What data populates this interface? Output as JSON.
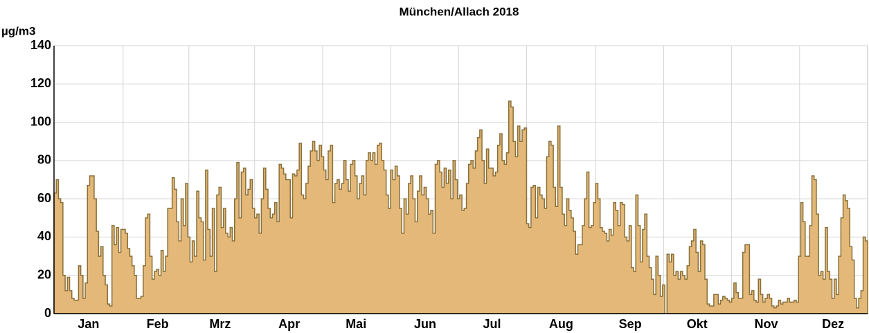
{
  "chart_data": {
    "type": "step-area",
    "title": "München/Allach 2018",
    "y_label": "µg/m3",
    "color": "#e3b878",
    "line_color": "#8a7038",
    "ylim": [
      0,
      140
    ],
    "yticks": [
      0,
      20,
      40,
      60,
      80,
      100,
      120,
      140
    ],
    "grid": true,
    "categories": [
      null,
      null,
      null,
      null,
      null,
      null,
      null,
      null,
      null,
      null,
      null,
      null,
      null,
      null,
      null,
      "Jan",
      null,
      null,
      null,
      null,
      null,
      null,
      null,
      null,
      null,
      null,
      null,
      null,
      null,
      null,
      null,
      null,
      null,
      null,
      null,
      null,
      null,
      null,
      null,
      null,
      null,
      null,
      null,
      null,
      null,
      null,
      "Feb",
      null,
      null,
      null,
      null,
      null,
      null,
      null,
      null,
      null,
      null,
      null,
      null,
      null,
      null,
      null,
      null,
      null,
      null,
      null,
      null,
      null,
      null,
      null,
      null,
      null,
      null,
      null,
      "Mrz",
      null,
      null,
      null,
      null,
      null,
      null,
      null,
      null,
      null,
      null,
      null,
      null,
      null,
      null,
      null,
      null,
      null,
      null,
      null,
      null,
      null,
      null,
      null,
      null,
      null,
      null,
      null,
      null,
      null,
      null,
      "Apr",
      null,
      null,
      null,
      null,
      null,
      null,
      null,
      null,
      null,
      null,
      null,
      null,
      null,
      null,
      null,
      null,
      null,
      null,
      null,
      null,
      null,
      null,
      null,
      null,
      null,
      null,
      null,
      null,
      null,
      "Mai",
      null,
      null,
      null,
      null,
      null,
      null,
      null,
      null,
      null,
      null,
      null,
      null,
      null,
      null,
      null,
      null,
      null,
      null,
      null,
      null,
      null,
      null,
      null,
      null,
      null,
      null,
      null,
      null,
      null,
      null,
      "Jun",
      null,
      null,
      null,
      null,
      null,
      null,
      null,
      null,
      null,
      null,
      null,
      null,
      null,
      null,
      null,
      null,
      null,
      null,
      null,
      null,
      null,
      null,
      null,
      null,
      null,
      null,
      null,
      null,
      null,
      "Jul",
      null,
      null,
      null,
      null,
      null,
      null,
      null,
      null,
      null,
      null,
      null,
      null,
      null,
      null,
      null,
      null,
      null,
      null,
      null,
      null,
      null,
      null,
      null,
      null,
      null,
      null,
      null,
      null,
      null,
      null,
      "Aug",
      null,
      null,
      null,
      null,
      null,
      null,
      null,
      null,
      null,
      null,
      null,
      null,
      null,
      null,
      null,
      null,
      null,
      null,
      null,
      null,
      null,
      null,
      null,
      null,
      null,
      null,
      null,
      null,
      null,
      null,
      "Sep",
      null,
      null,
      null,
      null,
      null,
      null,
      null,
      null,
      null,
      null,
      null,
      null,
      null,
      null,
      null,
      null,
      null,
      null,
      null,
      null,
      null,
      null,
      null,
      null,
      null,
      null,
      null,
      null,
      null,
      "Okt",
      null,
      null,
      null,
      null,
      null,
      null,
      null,
      null,
      null,
      null,
      null,
      null,
      null,
      null,
      null,
      null,
      null,
      null,
      null,
      null,
      null,
      null,
      null,
      null,
      null,
      null,
      null,
      null,
      null,
      null,
      "Nov",
      null,
      null,
      null,
      null,
      null,
      null,
      null,
      null,
      null,
      null,
      null,
      null,
      null,
      null,
      null,
      null,
      null,
      null,
      null,
      null,
      null,
      null,
      null,
      null,
      null,
      null,
      null,
      null,
      null,
      "Dez",
      null,
      null,
      null,
      null,
      null,
      null,
      null,
      null,
      null,
      null,
      null,
      null,
      null,
      null,
      null
    ],
    "values": [
      63,
      70,
      60,
      58,
      20,
      12,
      19,
      12,
      8,
      7,
      7,
      25,
      20,
      8,
      16,
      67,
      72,
      72,
      60,
      43,
      30,
      35,
      20,
      15,
      5,
      4,
      46,
      36,
      45,
      32,
      44,
      44,
      42,
      34,
      30,
      25,
      20,
      8,
      8,
      9,
      25,
      50,
      52,
      30,
      18,
      22,
      23,
      20,
      33,
      22,
      30,
      55,
      55,
      71,
      65,
      48,
      38,
      60,
      46,
      68,
      40,
      27,
      38,
      30,
      64,
      50,
      48,
      28,
      75,
      44,
      30,
      55,
      22,
      62,
      66,
      45,
      55,
      42,
      40,
      45,
      38,
      60,
      79,
      50,
      74,
      76,
      62,
      65,
      70,
      55,
      50,
      52,
      42,
      60,
      76,
      65,
      55,
      50,
      52,
      58,
      48,
      78,
      76,
      73,
      70,
      70,
      50,
      73,
      72,
      75,
      89,
      62,
      60,
      68,
      77,
      85,
      90,
      85,
      80,
      88,
      82,
      75,
      70,
      85,
      88,
      58,
      68,
      70,
      65,
      68,
      80,
      70,
      64,
      78,
      80,
      72,
      60,
      68,
      72,
      62,
      80,
      84,
      80,
      84,
      78,
      88,
      89,
      80,
      75,
      62,
      55,
      75,
      70,
      77,
      72,
      55,
      42,
      60,
      52,
      68,
      72,
      60,
      48,
      64,
      72,
      62,
      66,
      60,
      52,
      54,
      42,
      78,
      80,
      74,
      66,
      76,
      68,
      75,
      60,
      80,
      70,
      60,
      62,
      54,
      55,
      68,
      78,
      80,
      76,
      85,
      92,
      96,
      80,
      68,
      86,
      76,
      76,
      72,
      74,
      88,
      94,
      80,
      78,
      84,
      111,
      108,
      90,
      82,
      98,
      90,
      96,
      97,
      47,
      45,
      66,
      67,
      50,
      66,
      62,
      60,
      55,
      82,
      90,
      88,
      66,
      56,
      98,
      66,
      52,
      46,
      60,
      54,
      50,
      43,
      31,
      36,
      36,
      46,
      60,
      74,
      45,
      46,
      58,
      68,
      60,
      45,
      43,
      42,
      38,
      44,
      41,
      58,
      54,
      46,
      58,
      57,
      40,
      38,
      46,
      24,
      22,
      62,
      46,
      27,
      44,
      52,
      30,
      24,
      18,
      10,
      30,
      20,
      9,
      15,
      null,
      31,
      27,
      31,
      20,
      22,
      18,
      22,
      20,
      18,
      25,
      35,
      38,
      44,
      32,
      22,
      38,
      36,
      18,
      5,
      4,
      4,
      10,
      10,
      5,
      7,
      9,
      8,
      7,
      6,
      8,
      16,
      11,
      8,
      8,
      32,
      36,
      36,
      10,
      12,
      7,
      6,
      18,
      10,
      6,
      8,
      10,
      8,
      4,
      3,
      4,
      7,
      5,
      6,
      6,
      8,
      6,
      6,
      7,
      6,
      30,
      58,
      48,
      30,
      30,
      46,
      72,
      70,
      52,
      20,
      22,
      18,
      45,
      22,
      18,
      8,
      18,
      10,
      30,
      50,
      62,
      59,
      55,
      35,
      28,
      8,
      3,
      8,
      12,
      40,
      38
    ]
  }
}
